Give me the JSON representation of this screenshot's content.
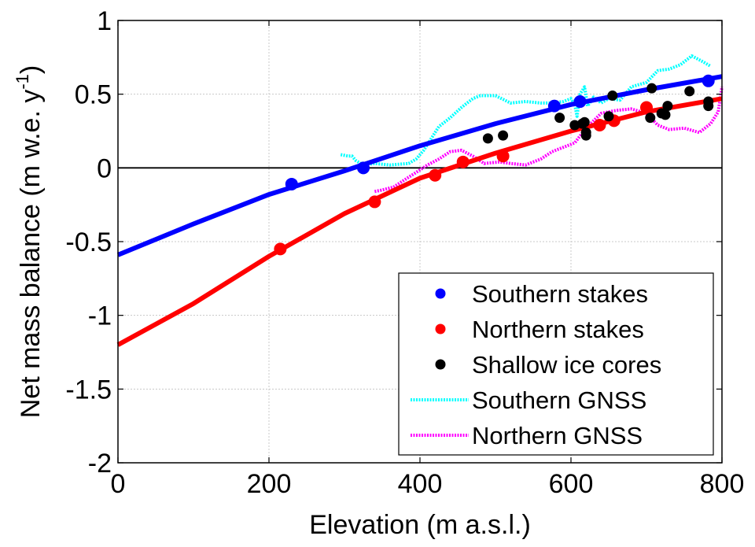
{
  "chart_data": {
    "type": "scatter",
    "xlabel": "Elevation (m a.s.l.)",
    "ylabel_main": "Net mass balance (m w.e. y",
    "ylabel_sup": "-1",
    "ylabel_close": ")",
    "xlim": [
      0,
      800
    ],
    "ylim": [
      -2,
      1
    ],
    "xticks": [
      0,
      200,
      400,
      600,
      800
    ],
    "yticks": [
      -2,
      -1.5,
      -1,
      -0.5,
      0,
      0.5,
      1
    ],
    "xtick_labels": [
      "0",
      "200",
      "400",
      "600",
      "800"
    ],
    "ytick_labels": [
      "-2",
      "-1.5",
      "-1",
      "-0.5",
      "0",
      "0.5",
      "1"
    ],
    "grid": true,
    "zero_line": true,
    "legend_position": "bottom-right",
    "legend": [
      {
        "label": "Southern stakes",
        "kind": "marker",
        "color": "#0000ff"
      },
      {
        "label": "Northern stakes",
        "kind": "marker",
        "color": "#ff0000"
      },
      {
        "label": "Shallow ice cores",
        "kind": "marker",
        "color": "#000000"
      },
      {
        "label": "Southern GNSS",
        "kind": "dotted-line",
        "color": "#00ffff"
      },
      {
        "label": "Northern GNSS",
        "kind": "dotted-line",
        "color": "#ff00ff"
      }
    ],
    "series": [
      {
        "name": "Southern stakes",
        "kind": "scatter",
        "color": "#0000ff",
        "points": [
          [
            230,
            -0.11
          ],
          [
            325,
            0.0
          ],
          [
            578,
            0.42
          ],
          [
            612,
            0.45
          ],
          [
            782,
            0.59
          ]
        ]
      },
      {
        "name": "Northern stakes",
        "kind": "scatter",
        "color": "#ff0000",
        "points": [
          [
            215,
            -0.55
          ],
          [
            340,
            -0.23
          ],
          [
            420,
            -0.05
          ],
          [
            457,
            0.04
          ],
          [
            510,
            0.08
          ],
          [
            638,
            0.29
          ],
          [
            657,
            0.32
          ],
          [
            700,
            0.41
          ]
        ]
      },
      {
        "name": "Shallow ice cores",
        "kind": "scatter",
        "color": "#000000",
        "points": [
          [
            490,
            0.2
          ],
          [
            510,
            0.22
          ],
          [
            585,
            0.34
          ],
          [
            605,
            0.29
          ],
          [
            615,
            0.3
          ],
          [
            618,
            0.31
          ],
          [
            620,
            0.22
          ],
          [
            620,
            0.24
          ],
          [
            650,
            0.35
          ],
          [
            655,
            0.49
          ],
          [
            705,
            0.34
          ],
          [
            707,
            0.54
          ],
          [
            720,
            0.37
          ],
          [
            725,
            0.36
          ],
          [
            728,
            0.42
          ],
          [
            757,
            0.52
          ],
          [
            782,
            0.42
          ],
          [
            782,
            0.45
          ]
        ]
      },
      {
        "name": "Southern fit",
        "kind": "line",
        "color": "#0000ff",
        "points": [
          [
            0,
            -0.59
          ],
          [
            100,
            -0.38
          ],
          [
            200,
            -0.18
          ],
          [
            300,
            -0.02
          ],
          [
            400,
            0.15
          ],
          [
            500,
            0.3
          ],
          [
            600,
            0.43
          ],
          [
            700,
            0.53
          ],
          [
            800,
            0.62
          ]
        ]
      },
      {
        "name": "Northern fit",
        "kind": "line",
        "color": "#ff0000",
        "points": [
          [
            0,
            -1.2
          ],
          [
            100,
            -0.92
          ],
          [
            200,
            -0.6
          ],
          [
            300,
            -0.31
          ],
          [
            400,
            -0.07
          ],
          [
            500,
            0.1
          ],
          [
            600,
            0.25
          ],
          [
            700,
            0.38
          ],
          [
            800,
            0.47
          ]
        ]
      },
      {
        "name": "Southern GNSS",
        "kind": "dotted-line",
        "color": "#00ffff",
        "points": [
          [
            295,
            0.09
          ],
          [
            305,
            0.08
          ],
          [
            310,
            0.08
          ],
          [
            315,
            0.05
          ],
          [
            325,
            0.02
          ],
          [
            340,
            0.03
          ],
          [
            360,
            0.02
          ],
          [
            385,
            0.03
          ],
          [
            395,
            0.06
          ],
          [
            405,
            0.12
          ],
          [
            415,
            0.2
          ],
          [
            425,
            0.28
          ],
          [
            440,
            0.34
          ],
          [
            455,
            0.41
          ],
          [
            470,
            0.47
          ],
          [
            480,
            0.49
          ],
          [
            500,
            0.49
          ],
          [
            520,
            0.44
          ],
          [
            540,
            0.45
          ],
          [
            560,
            0.44
          ],
          [
            575,
            0.44
          ],
          [
            590,
            0.45
          ],
          [
            600,
            0.47
          ],
          [
            605,
            0.43
          ],
          [
            608,
            0.35
          ],
          [
            612,
            0.5
          ],
          [
            618,
            0.55
          ],
          [
            622,
            0.42
          ],
          [
            630,
            0.48
          ],
          [
            640,
            0.44
          ],
          [
            650,
            0.47
          ],
          [
            665,
            0.46
          ],
          [
            680,
            0.55
          ],
          [
            700,
            0.58
          ],
          [
            715,
            0.66
          ],
          [
            730,
            0.67
          ],
          [
            745,
            0.7
          ],
          [
            760,
            0.76
          ],
          [
            775,
            0.72
          ],
          [
            785,
            0.69
          ]
        ]
      },
      {
        "name": "Northern GNSS",
        "kind": "dotted-line",
        "color": "#ff00ff",
        "points": [
          [
            340,
            -0.16
          ],
          [
            350,
            -0.15
          ],
          [
            365,
            -0.13
          ],
          [
            380,
            -0.08
          ],
          [
            395,
            -0.03
          ],
          [
            410,
            0.02
          ],
          [
            425,
            0.06
          ],
          [
            440,
            0.11
          ],
          [
            455,
            0.12
          ],
          [
            470,
            0.08
          ],
          [
            485,
            0.03
          ],
          [
            505,
            0.04
          ],
          [
            520,
            0.03
          ],
          [
            540,
            0.02
          ],
          [
            560,
            0.06
          ],
          [
            575,
            0.11
          ],
          [
            590,
            0.14
          ],
          [
            605,
            0.17
          ],
          [
            620,
            0.27
          ],
          [
            640,
            0.37
          ],
          [
            660,
            0.39
          ],
          [
            680,
            0.4
          ],
          [
            700,
            0.37
          ],
          [
            715,
            0.29
          ],
          [
            730,
            0.26
          ],
          [
            750,
            0.27
          ],
          [
            770,
            0.24
          ],
          [
            785,
            0.3
          ],
          [
            795,
            0.38
          ],
          [
            800,
            0.55
          ]
        ]
      }
    ]
  }
}
